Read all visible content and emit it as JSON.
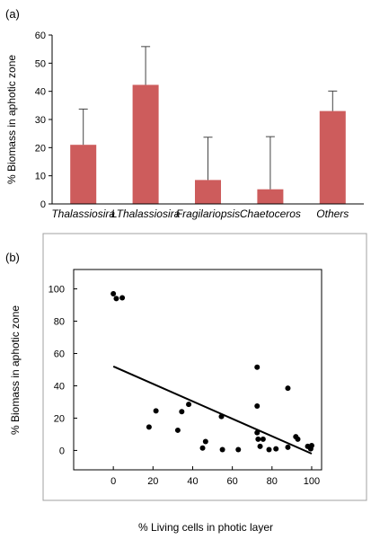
{
  "chart_data": [
    {
      "panel_label": "(a)",
      "type": "bar",
      "ylabel": "% Biomass in aphotic zone",
      "xlabel": "",
      "categories": [
        "Thalassiosira",
        "LThalassiosira",
        "Fragilariopsis",
        "Chaetoceros",
        "Others"
      ],
      "values": [
        21,
        42.3,
        8.5,
        5.2,
        33
      ],
      "error_upper": [
        33.7,
        55.9,
        23.7,
        23.9,
        40.1
      ],
      "ylim": [
        0,
        60
      ],
      "yticks": [
        0,
        10,
        20,
        30,
        40,
        50,
        60
      ],
      "bar_color": "#cd5c5c",
      "grid": false
    },
    {
      "panel_label": "(b)",
      "type": "scatter",
      "ylabel": "% Biomass in aphotic zone",
      "xlabel": "% Living cells in photic layer",
      "xlim": [
        -20,
        105
      ],
      "ylim": [
        -12,
        112
      ],
      "xticks": [
        0,
        20,
        40,
        60,
        80,
        100
      ],
      "yticks": [
        0,
        20,
        40,
        60,
        80,
        100
      ],
      "points": [
        [
          0,
          97
        ],
        [
          1.5,
          94
        ],
        [
          4.5,
          94.5
        ],
        [
          18,
          14.5
        ],
        [
          21.5,
          24.5
        ],
        [
          32.5,
          12.5
        ],
        [
          34.5,
          24
        ],
        [
          38,
          28.5
        ],
        [
          45,
          1.5
        ],
        [
          46.5,
          5.5
        ],
        [
          54.5,
          21
        ],
        [
          55,
          0.5
        ],
        [
          63,
          0.5
        ],
        [
          72.5,
          51.5
        ],
        [
          72.5,
          27.5
        ],
        [
          72.5,
          11
        ],
        [
          73,
          7
        ],
        [
          74,
          2.5
        ],
        [
          75.5,
          7
        ],
        [
          78.5,
          0.5
        ],
        [
          82,
          1
        ],
        [
          88,
          38.5
        ],
        [
          88,
          2
        ],
        [
          92,
          8.5
        ],
        [
          93,
          7
        ],
        [
          98,
          2.5
        ],
        [
          99.5,
          1
        ],
        [
          100,
          3
        ]
      ],
      "trendline": {
        "x1": 0,
        "y1": 52,
        "x2": 100,
        "y2": -2
      },
      "point_color": "#000000",
      "grid": false
    }
  ]
}
